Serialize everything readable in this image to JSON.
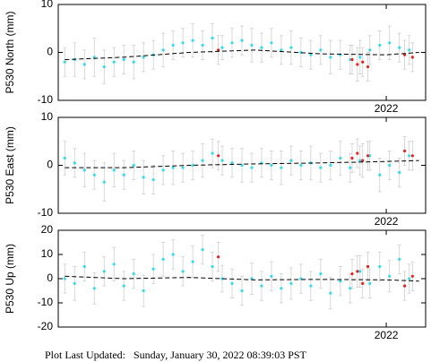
{
  "chart_data": [
    {
      "type": "scatter",
      "ylabel": "P530 North (mm)",
      "xlim": [
        2019.5,
        2022.3
      ],
      "xticks": [
        2022
      ],
      "ylim": [
        -10,
        10
      ],
      "yticks": [
        -10,
        0,
        10
      ],
      "series": [
        {
          "color": "#33dcec",
          "x": [
            2019.55,
            2019.625,
            2019.7,
            2019.775,
            2019.85,
            2019.925,
            2020.0,
            2020.075,
            2020.15,
            2020.225,
            2020.3,
            2020.375,
            2020.45,
            2020.525,
            2020.6,
            2020.675,
            2020.75,
            2020.825,
            2020.9,
            2020.975,
            2021.05,
            2021.125,
            2021.2,
            2021.275,
            2021.35,
            2021.425,
            2021.5,
            2021.575,
            2021.65,
            2021.725,
            2021.8,
            2021.875,
            2021.95,
            2022.025,
            2022.1,
            2022.175
          ],
          "values": [
            -2,
            -1.5,
            -2.5,
            -1,
            -3,
            -2,
            -1.5,
            -2,
            -1,
            -0.5,
            0.5,
            1.5,
            2,
            2.5,
            1.5,
            3,
            1,
            2,
            2.5,
            1.5,
            1,
            2,
            0.5,
            1,
            0,
            -0.5,
            0.5,
            -1,
            -0.5,
            -1.5,
            -1,
            0.5,
            1.5,
            2,
            1,
            0.5
          ],
          "errors": [
            3,
            3.5,
            3,
            4,
            3.5,
            3,
            3,
            3.5,
            3,
            3,
            3.5,
            3,
            3,
            3.5,
            3,
            3,
            2.5,
            3,
            3,
            3.5,
            3,
            3,
            3,
            3.5,
            3,
            3,
            3,
            3.5,
            3,
            3,
            3.5,
            3,
            3,
            3.5,
            3,
            3
          ]
        },
        {
          "color": "#e8201c",
          "x": [
            2020.72,
            2021.74,
            2021.78,
            2021.82,
            2021.86,
            2022.14,
            2022.2
          ],
          "values": [
            0.5,
            -1.5,
            -2.5,
            -2,
            -3,
            -0.5,
            -1
          ],
          "errors": [
            3,
            3,
            3.5,
            3,
            3,
            3,
            3
          ]
        }
      ],
      "trend": {
        "color": "#000000",
        "x": [
          2019.55,
          2020.0,
          2020.5,
          2021.0,
          2021.5,
          2022.0,
          2022.25
        ],
        "values": [
          -1.5,
          -1,
          0,
          0.5,
          -0.3,
          -0.5,
          0
        ]
      }
    },
    {
      "type": "scatter",
      "ylabel": "P530 East (mm)",
      "xlim": [
        2019.5,
        2022.3
      ],
      "xticks": [
        2022
      ],
      "ylim": [
        -10,
        10
      ],
      "yticks": [
        -10,
        0,
        10
      ],
      "series": [
        {
          "color": "#33dcec",
          "x": [
            2019.55,
            2019.625,
            2019.7,
            2019.775,
            2019.85,
            2019.925,
            2020.0,
            2020.075,
            2020.15,
            2020.225,
            2020.3,
            2020.375,
            2020.45,
            2020.525,
            2020.6,
            2020.675,
            2020.75,
            2020.825,
            2020.9,
            2020.975,
            2021.05,
            2021.125,
            2021.2,
            2021.275,
            2021.35,
            2021.425,
            2021.5,
            2021.575,
            2021.65,
            2021.725,
            2021.8,
            2021.875,
            2021.95,
            2022.025,
            2022.1,
            2022.175
          ],
          "values": [
            1.5,
            0.5,
            -1,
            -2,
            -3.5,
            -1,
            -2,
            0,
            -2.5,
            -3,
            -1,
            -0.5,
            -0.5,
            0,
            1,
            2.5,
            1,
            0.5,
            0,
            -0.5,
            0.5,
            0,
            -0.5,
            1,
            0,
            0.5,
            -0.5,
            0,
            1.5,
            -0.5,
            1,
            2,
            -2,
            0,
            -1.5,
            2
          ],
          "errors": [
            3.5,
            3,
            3.5,
            3,
            4,
            3.5,
            3,
            3,
            3.5,
            3,
            3,
            3.5,
            3,
            3,
            3.5,
            3,
            3,
            3,
            3.5,
            3,
            3,
            3,
            3.5,
            3,
            3,
            3.5,
            3,
            3,
            3.5,
            3,
            3,
            3,
            3.5,
            3,
            3,
            3
          ]
        },
        {
          "color": "#e8201c",
          "x": [
            2020.72,
            2021.74,
            2021.78,
            2021.82,
            2021.86,
            2022.14,
            2022.2
          ],
          "values": [
            2,
            1.5,
            2.5,
            1,
            2,
            3,
            2
          ],
          "errors": [
            3,
            3,
            3,
            3.5,
            3,
            3,
            3
          ]
        }
      ],
      "trend": {
        "color": "#000000",
        "x": [
          2019.55,
          2020.0,
          2020.5,
          2021.0,
          2021.5,
          2022.0,
          2022.25
        ],
        "values": [
          -0.5,
          -0.5,
          0,
          0.3,
          0.5,
          0.8,
          1
        ]
      }
    },
    {
      "type": "scatter",
      "ylabel": "P530 Up (mm)",
      "xlim": [
        2019.5,
        2022.3
      ],
      "xticks": [
        2022
      ],
      "ylim": [
        -20,
        20
      ],
      "yticks": [
        -20,
        -10,
        0,
        10,
        20
      ],
      "series": [
        {
          "color": "#33dcec",
          "x": [
            2019.55,
            2019.625,
            2019.7,
            2019.775,
            2019.85,
            2019.925,
            2020.0,
            2020.075,
            2020.15,
            2020.225,
            2020.3,
            2020.375,
            2020.45,
            2020.525,
            2020.6,
            2020.675,
            2020.75,
            2020.825,
            2020.9,
            2020.975,
            2021.05,
            2021.125,
            2021.2,
            2021.275,
            2021.35,
            2021.425,
            2021.5,
            2021.575,
            2021.65,
            2021.725,
            2021.8,
            2021.875,
            2021.95,
            2022.025,
            2022.1,
            2022.175
          ],
          "values": [
            0,
            -2,
            5,
            -4,
            3,
            6,
            -3,
            2,
            -5,
            4,
            8,
            10,
            3,
            7,
            12,
            5,
            0,
            -2,
            -5,
            0,
            -3,
            1,
            -4,
            -2,
            0,
            -3,
            2,
            -6,
            -1,
            -4,
            3,
            -2,
            5,
            1,
            8,
            0
          ],
          "errors": [
            6,
            7,
            6,
            6.5,
            6,
            7,
            6,
            6,
            6.5,
            6,
            7,
            6,
            6,
            6.5,
            6,
            6,
            5.5,
            6,
            6,
            6.5,
            6,
            6,
            6,
            6.5,
            6,
            6,
            6,
            6.5,
            6,
            6,
            6.5,
            6,
            6,
            6.5,
            6,
            6
          ]
        },
        {
          "color": "#e8201c",
          "x": [
            2020.72,
            2021.74,
            2021.78,
            2021.82,
            2021.86,
            2022.14,
            2022.2
          ],
          "values": [
            9,
            2,
            3,
            -2,
            5,
            -3,
            1
          ],
          "errors": [
            6,
            6,
            6.5,
            6,
            6,
            6,
            6
          ]
        }
      ],
      "trend": {
        "color": "#000000",
        "x": [
          2019.55,
          2020.0,
          2020.5,
          2021.0,
          2021.5,
          2022.0,
          2022.25
        ],
        "values": [
          1,
          0,
          0.5,
          -0.5,
          -0.3,
          -0.5,
          -1
        ]
      }
    }
  ],
  "footer": "Plot Last Updated:   Sunday, January 30, 2022 08:39:03 PST"
}
